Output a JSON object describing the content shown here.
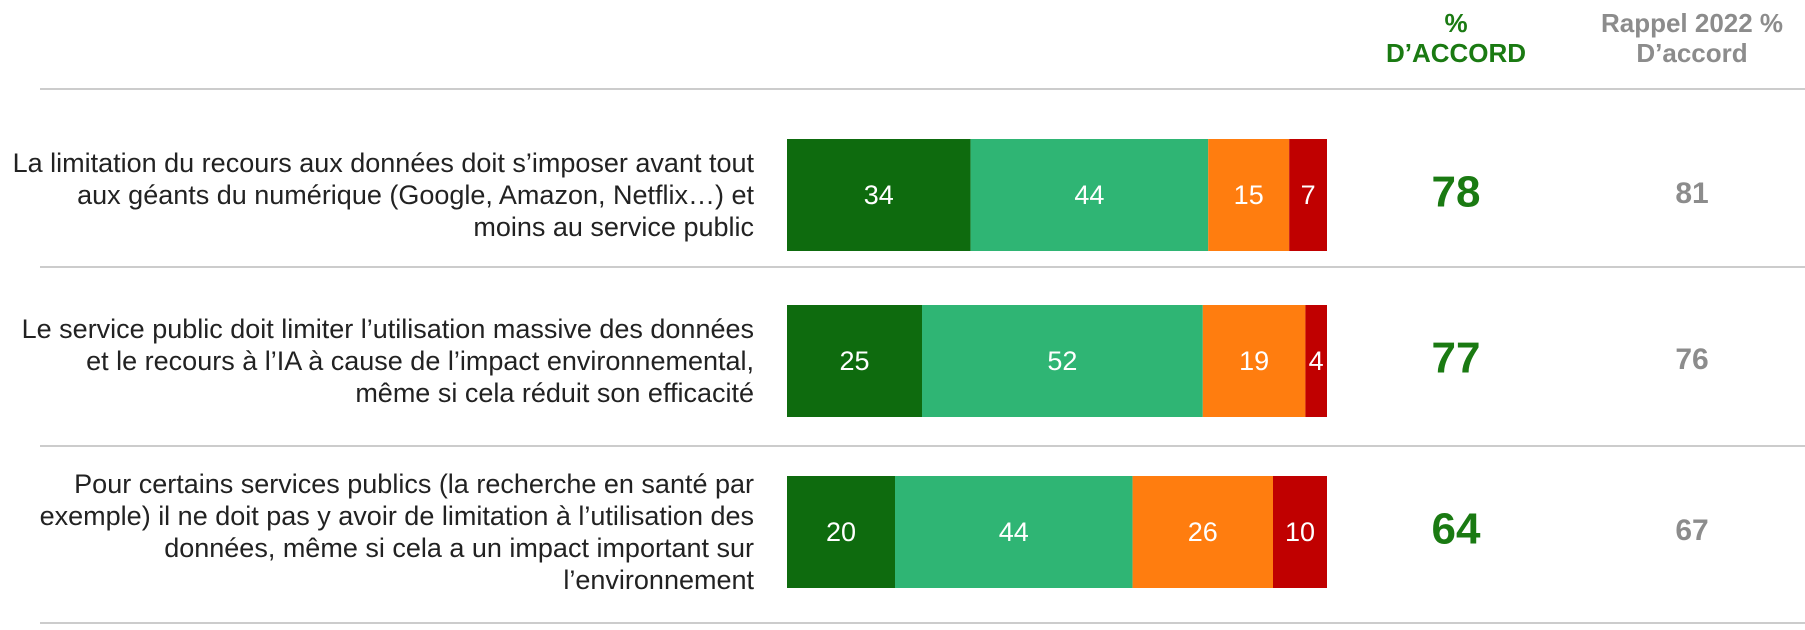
{
  "chart_data": {
    "type": "stacked_barh",
    "categories": [
      "La limitation du recours aux données doit s’imposer avant tout aux géants du numérique (Google, Amazon, Netflix…) et moins au service public",
      "Le service public doit limiter l’utilisation massive des données et le recours à l’IA à cause de l’impact environnemental, même si cela réduit son efficacité",
      "Pour certains services publics (la recherche en santé par exemple) il ne doit pas y avoir de limitation à l’utilisation des données, même si cela a un impact important sur l’environnement"
    ],
    "series": [
      {
        "color": "#0e6b0e",
        "values": [
          34,
          25,
          20
        ]
      },
      {
        "color": "#2fb574",
        "values": [
          44,
          52,
          44
        ]
      },
      {
        "color": "#ff7d0f",
        "values": [
          15,
          19,
          26
        ]
      },
      {
        "color": "#c00000",
        "values": [
          7,
          4,
          10
        ]
      }
    ],
    "xlim": [
      0,
      100
    ],
    "columns": [
      {
        "header": "% D’ACCORD",
        "values": [
          78,
          77,
          64
        ],
        "color": "#1a7a12"
      },
      {
        "header": "Rappel 2022 % D’accord",
        "values": [
          81,
          76,
          67
        ],
        "color": "#8c8c8c"
      }
    ]
  }
}
